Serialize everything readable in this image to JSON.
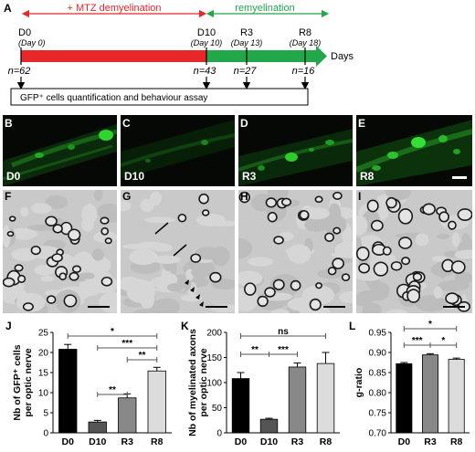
{
  "panel_letters": [
    "A",
    "B",
    "C",
    "D",
    "E",
    "F",
    "G",
    "H",
    "I",
    "J",
    "K",
    "L"
  ],
  "timeline": {
    "demyelination_label": "+ MTZ demyelination",
    "remyelination_label": "remyelination",
    "days_label": "Days",
    "timepoints": [
      {
        "name": "D0",
        "day": "(Day 0)",
        "n": "n=62"
      },
      {
        "name": "D10",
        "day": "(Day 10)",
        "n": "n=43"
      },
      {
        "name": "R3",
        "day": "(Day 13)",
        "n": "n=27"
      },
      {
        "name": "R8",
        "day": "(Day 18)",
        "n": "n=16"
      }
    ],
    "assay_box": "GFP⁺ cells quantification and behaviour assay",
    "colors": {
      "demyelination": "#e8272a",
      "remyelination": "#22a84a"
    }
  },
  "fluorescence_labels": [
    "D0",
    "D10",
    "R3",
    "R8"
  ],
  "em_arrow_panel": "G",
  "chart_data": [
    {
      "type": "bar",
      "panel": "J",
      "ylabel": "Nb of GFP⁺ cells per optic nerve",
      "categories": [
        "D0",
        "D10",
        "R3",
        "R8"
      ],
      "values": [
        20.8,
        2.7,
        8.7,
        15.4
      ],
      "errors": [
        1.2,
        0.4,
        1.0,
        0.9
      ],
      "ylim": [
        0,
        25
      ],
      "yticks": [
        0,
        5,
        10,
        15,
        20,
        25
      ],
      "bar_colors": [
        "#000000",
        "#555555",
        "#888888",
        "#dcdcdc"
      ],
      "significance": [
        {
          "from": 0,
          "to": 3,
          "label": "*"
        },
        {
          "from": 1,
          "to": 3,
          "label": "***"
        },
        {
          "from": 2,
          "to": 3,
          "label": "**"
        },
        {
          "from": 1,
          "to": 2,
          "label": "**"
        }
      ]
    },
    {
      "type": "bar",
      "panel": "K",
      "ylabel": "Nb of myelinated axons per optic nerve",
      "categories": [
        "D0",
        "D10",
        "R3",
        "R8"
      ],
      "values": [
        108,
        27,
        131,
        138
      ],
      "errors": [
        12,
        2,
        8,
        22
      ],
      "ylim": [
        0,
        200
      ],
      "yticks": [
        0,
        50,
        100,
        150,
        200
      ],
      "bar_colors": [
        "#000000",
        "#555555",
        "#888888",
        "#dcdcdc"
      ],
      "significance": [
        {
          "from": 0,
          "to": 3,
          "label": "ns"
        },
        {
          "from": 0,
          "to": 1,
          "label": "**"
        },
        {
          "from": 1,
          "to": 2,
          "label": "***"
        }
      ]
    },
    {
      "type": "bar",
      "panel": "L",
      "ylabel": "g-ratio",
      "categories": [
        "D0",
        "R3",
        "R8"
      ],
      "values": [
        0.872,
        0.894,
        0.883
      ],
      "errors": [
        0.003,
        0.003,
        0.003
      ],
      "ylim": [
        0.7,
        0.95
      ],
      "yticks": [
        "0.70",
        "0.75",
        "0.80",
        "0.85",
        "0.90",
        "0.95"
      ],
      "bar_colors": [
        "#000000",
        "#888888",
        "#dcdcdc"
      ],
      "significance": [
        {
          "from": 0,
          "to": 2,
          "label": "*"
        },
        {
          "from": 0,
          "to": 1,
          "label": "***"
        },
        {
          "from": 1,
          "to": 2,
          "label": "*"
        }
      ]
    }
  ]
}
